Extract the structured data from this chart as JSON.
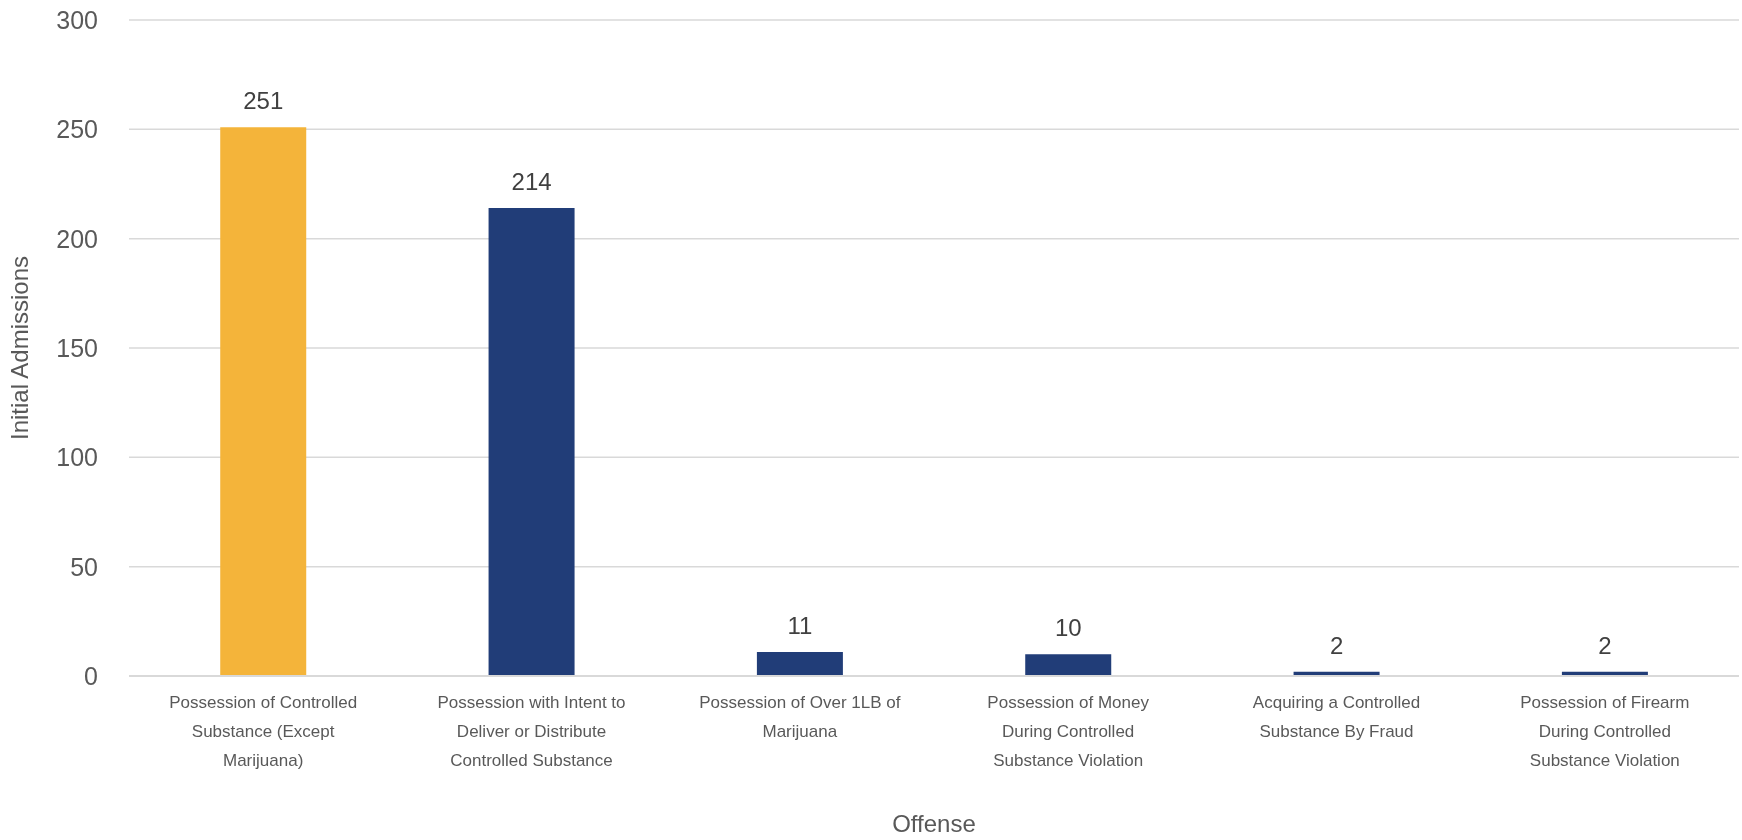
{
  "chart_data": {
    "type": "bar",
    "xlabel": "Offense",
    "ylabel": "Initial Admissions",
    "categories": [
      "Possession of Controlled Substance (Except Marijuana)",
      "Possession with Intent to Deliver or Distribute Controlled Substance",
      "Possession of Over 1LB of Marijuana",
      "Possession of Money During Controlled Substance Violation",
      "Acquiring a Controlled Substance By Fraud",
      "Possession of Firearm During Controlled Substance Violation"
    ],
    "values": [
      251,
      214,
      11,
      10,
      2,
      2
    ],
    "colors": [
      "#f4b43a",
      "#213d78",
      "#213d78",
      "#213d78",
      "#213d78",
      "#213d78"
    ],
    "ylim": [
      0,
      300
    ],
    "yticks": [
      0,
      50,
      100,
      150,
      200,
      250,
      300
    ],
    "grid": "y",
    "data_labels": true
  }
}
